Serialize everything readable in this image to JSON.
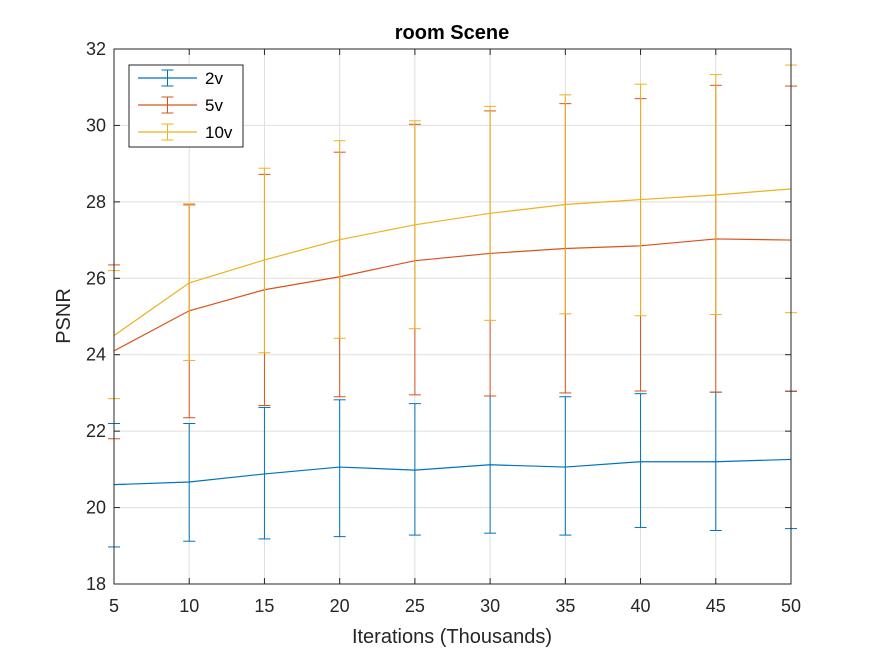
{
  "chart_data": {
    "type": "line",
    "title": "room Scene",
    "xlabel": "Iterations (Thousands)",
    "ylabel": "PSNR",
    "xlim": [
      5,
      50
    ],
    "ylim": [
      18,
      32
    ],
    "x": [
      5,
      10,
      15,
      20,
      25,
      30,
      35,
      40,
      45,
      50
    ],
    "xticks": [
      "5",
      "10",
      "15",
      "20",
      "25",
      "30",
      "35",
      "40",
      "45",
      "50"
    ],
    "yticks": [
      "18",
      "20",
      "22",
      "24",
      "26",
      "28",
      "30",
      "32"
    ],
    "grid": true,
    "legend_position": "top-left",
    "error_bars": true,
    "series": [
      {
        "name": "2v",
        "color": "#0072BD",
        "values": [
          20.6,
          20.67,
          20.88,
          21.06,
          20.98,
          21.12,
          21.06,
          21.2,
          21.2,
          21.26
        ],
        "lower": [
          18.97,
          19.12,
          19.18,
          19.24,
          19.28,
          19.33,
          19.28,
          19.48,
          19.4,
          19.45
        ],
        "upper": [
          22.2,
          22.2,
          22.62,
          22.82,
          22.72,
          22.92,
          22.9,
          22.98,
          23.02,
          23.04
        ]
      },
      {
        "name": "5v",
        "color": "#D95319",
        "values": [
          24.1,
          25.15,
          25.7,
          26.04,
          26.46,
          26.65,
          26.78,
          26.85,
          27.03,
          27.0
        ],
        "lower": [
          21.8,
          22.35,
          22.67,
          22.9,
          22.95,
          22.92,
          23.0,
          23.05,
          23.02,
          23.05
        ],
        "upper": [
          26.35,
          27.92,
          28.72,
          29.3,
          30.03,
          30.38,
          30.57,
          30.7,
          31.05,
          31.03
        ]
      },
      {
        "name": "10v",
        "color": "#EDB120",
        "values": [
          24.5,
          25.88,
          26.48,
          27.01,
          27.4,
          27.7,
          27.93,
          28.06,
          28.18,
          28.34
        ],
        "lower": [
          22.85,
          23.85,
          24.05,
          24.43,
          24.68,
          24.9,
          25.07,
          25.02,
          25.05,
          25.1
        ],
        "upper": [
          26.2,
          27.95,
          28.88,
          29.6,
          30.12,
          30.5,
          30.8,
          31.08,
          31.33,
          31.58
        ]
      }
    ]
  }
}
